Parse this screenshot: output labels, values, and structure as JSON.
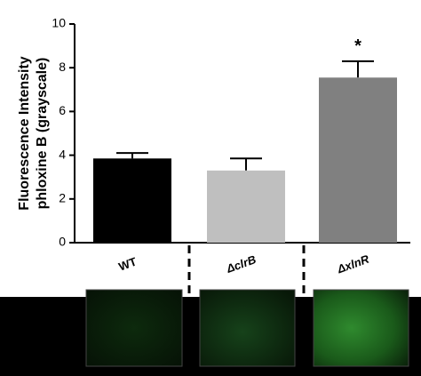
{
  "chart_data": {
    "type": "bar",
    "y_label_lines": [
      "Fluorescence Intensity",
      "phloxine B (grayscale)"
    ],
    "categories": [
      "WT",
      "ΔclrB",
      "ΔxlnR"
    ],
    "values": [
      3.85,
      3.3,
      7.55
    ],
    "errors": [
      0.25,
      0.55,
      0.75
    ],
    "colors": [
      "#000000",
      "#bfbfbf",
      "#808080"
    ],
    "annotation": {
      "text": "*",
      "category": 2
    },
    "ylim": [
      0,
      10
    ],
    "yticks": [
      0,
      2,
      4,
      6,
      8,
      10
    ],
    "grid": false
  }
}
